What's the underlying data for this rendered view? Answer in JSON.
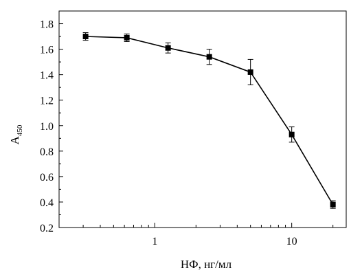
{
  "chart_data": {
    "type": "line",
    "title": "",
    "xlabel": "НФ, нг/мл",
    "ylabel": {
      "main": "A",
      "sub": "450"
    },
    "x_scale": "log",
    "xlim": [
      0.2,
      25
    ],
    "ylim": [
      0.2,
      1.9
    ],
    "x_ticks": [
      {
        "value": 1,
        "label": "1"
      },
      {
        "value": 10,
        "label": "10"
      }
    ],
    "y_ticks": [
      {
        "value": 0.2,
        "label": "0.2"
      },
      {
        "value": 0.4,
        "label": "0.4"
      },
      {
        "value": 0.6,
        "label": "0.6"
      },
      {
        "value": 0.8,
        "label": "0.8"
      },
      {
        "value": 1.0,
        "label": "1.0"
      },
      {
        "value": 1.2,
        "label": "1.2"
      },
      {
        "value": 1.4,
        "label": "1.4"
      },
      {
        "value": 1.6,
        "label": "1.6"
      },
      {
        "value": 1.8,
        "label": "1.8"
      }
    ],
    "grid": false,
    "series": [
      {
        "color": "#000000",
        "marker": "square",
        "x": [
          0.3125,
          0.625,
          1.25,
          2.5,
          5,
          10,
          20
        ],
        "y": [
          1.7,
          1.69,
          1.61,
          1.54,
          1.42,
          0.93,
          0.38
        ],
        "error": [
          0.03,
          0.03,
          0.04,
          0.06,
          0.1,
          0.06,
          0.03
        ]
      }
    ]
  }
}
